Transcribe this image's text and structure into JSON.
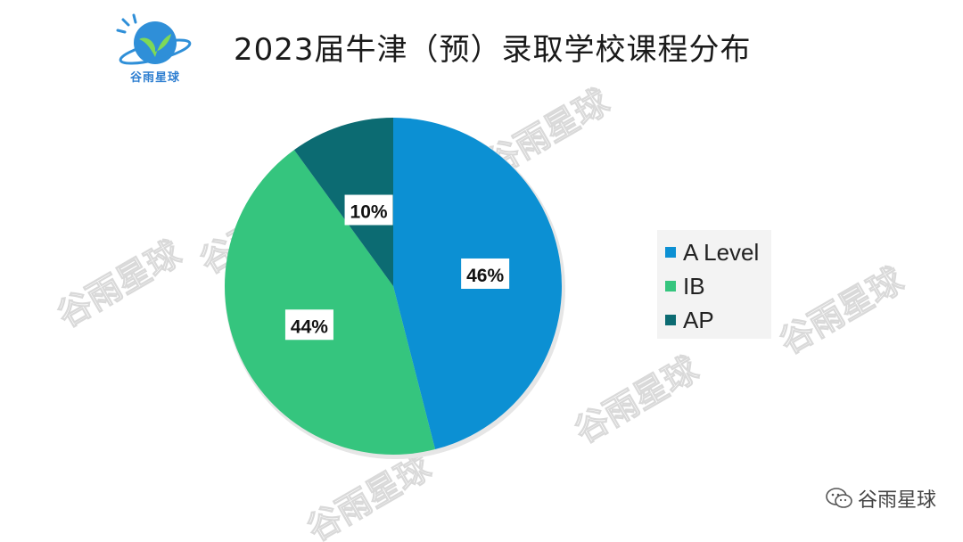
{
  "logo": {
    "text": "谷雨星球"
  },
  "footer": {
    "text": "谷雨星球"
  },
  "watermark": "谷雨星球",
  "chart_data": {
    "type": "pie",
    "title": "2023届牛津（预）录取学校课程分布",
    "categories": [
      "A Level",
      "IB",
      "AP"
    ],
    "values": [
      46,
      44,
      10
    ],
    "labels": [
      "46%",
      "44%",
      "10%"
    ],
    "colors": [
      "#0c90d3",
      "#35c57e",
      "#0c6b72"
    ],
    "legend_position": "right",
    "start": "top-clockwise"
  }
}
